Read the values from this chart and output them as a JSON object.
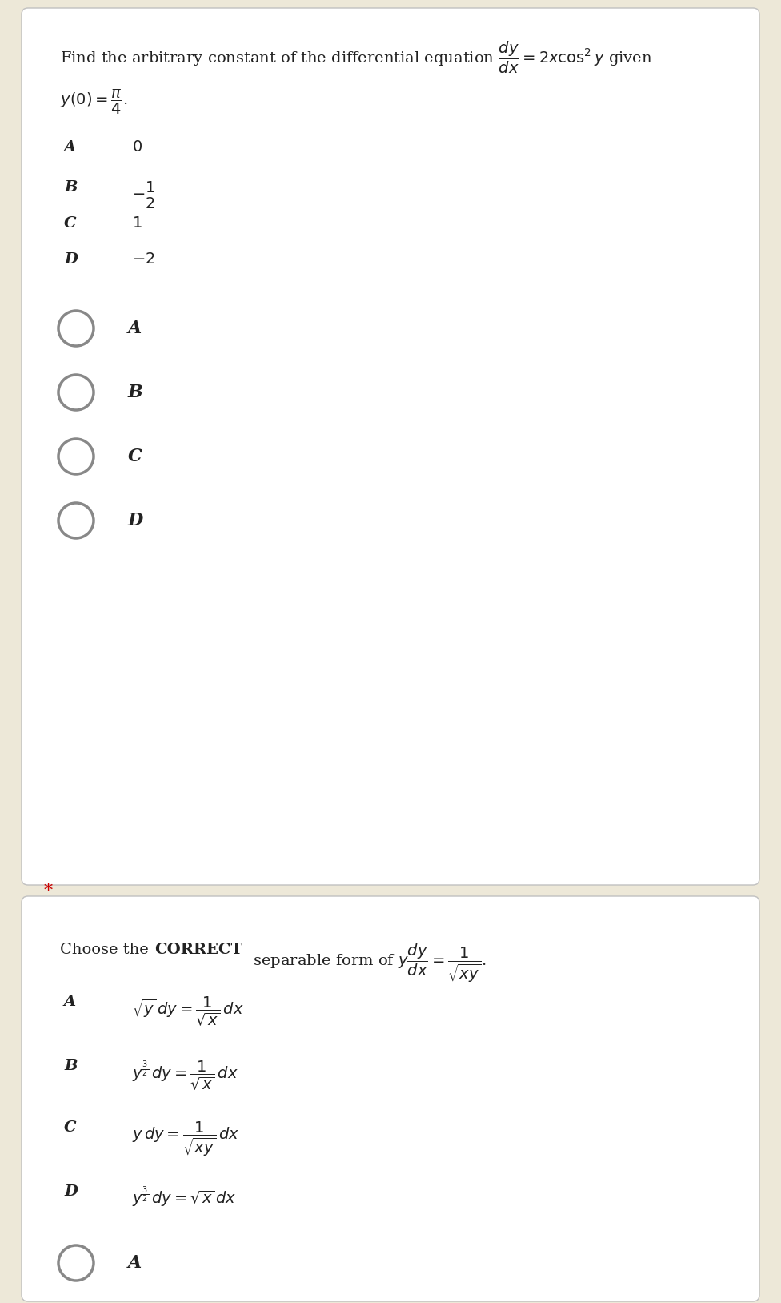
{
  "bg_outer": "#ede8d8",
  "bg_card": "#ffffff",
  "text_color": "#222222",
  "circle_color": "#888888",
  "star_color": "#cc0000",
  "q1_title": "Find the arbitrary constant of the differential equation $\\dfrac{dy}{dx} = 2x\\cos^2 y$ given",
  "q1_condition": "$y(0) = \\dfrac{\\pi}{4}$.",
  "q1_option_labels": [
    "A",
    "B",
    "C",
    "D"
  ],
  "q1_option_values_text": [
    "0",
    "",
    "1",
    "-2"
  ],
  "q1_option_B_math": "$-\\dfrac{1}{2}$",
  "q2_intro_plain": "Choose the ",
  "q2_intro_bold": "CORRECT",
  "q2_intro_rest": " separable form of $y\\dfrac{dy}{dx} = \\dfrac{1}{\\sqrt{xy}}$.",
  "q2_option_labels": [
    "A",
    "B",
    "C",
    "D"
  ],
  "q2_option_values": [
    "$\\sqrt{y}\\,dy = \\dfrac{1}{\\sqrt{x}}\\,dx$",
    "$y^{\\frac{3}{2}}\\,dy = \\dfrac{1}{\\sqrt{x}}\\,dx$",
    "$y\\,dy = \\dfrac{1}{\\sqrt{xy}}\\,dx$",
    "$y^{\\frac{3}{2}}\\,dy = \\sqrt{x}\\,dx$"
  ],
  "figw": 9.76,
  "figh": 16.27,
  "dpi": 100
}
